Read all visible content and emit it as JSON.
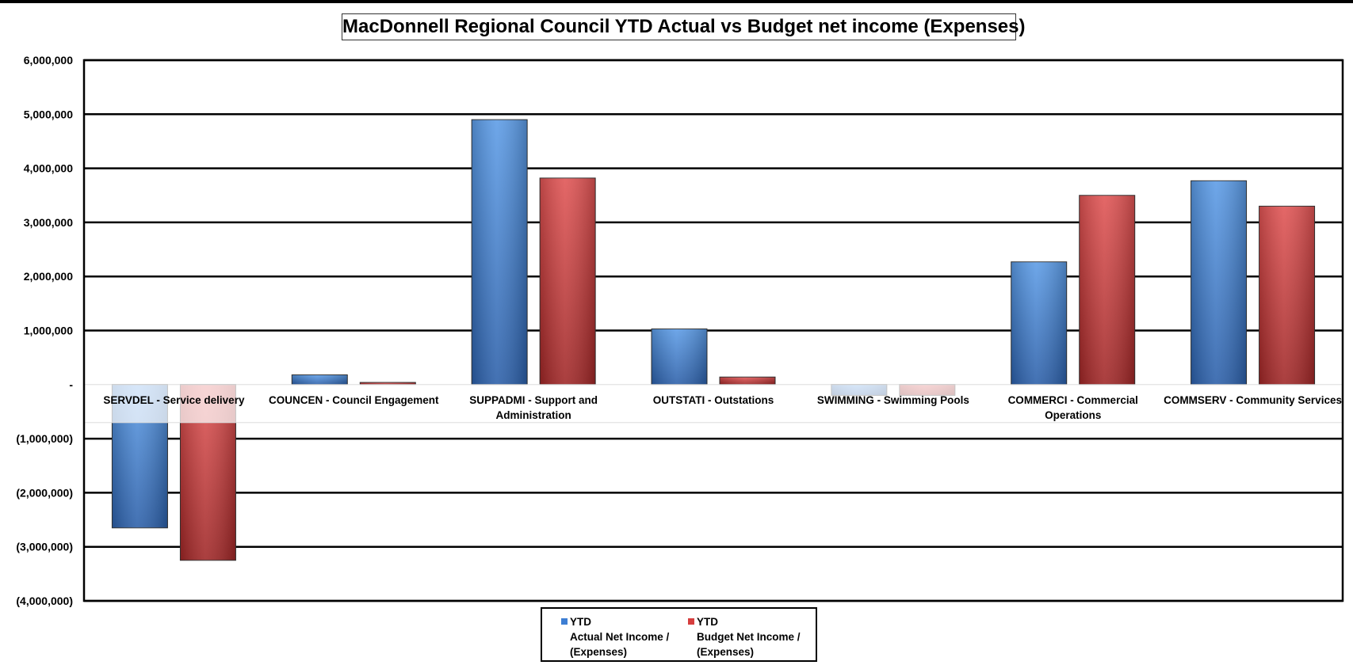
{
  "chart_data": {
    "type": "bar",
    "title": "MacDonnell Regional Council YTD Actual vs Budget net income (Expenses)",
    "categories": [
      "SERVDEL - Service delivery",
      "COUNCEN - Council Engagement",
      "SUPPADMI - Support and Administration",
      "OUTSTATI - Outstations",
      "SWIMMING - Swimming Pools",
      "COMMERCI - Commercial Operations",
      "COMMSERV - Community Services"
    ],
    "category_label_lines": [
      [
        "SERVDEL - Service delivery"
      ],
      [
        "COUNCEN - Council Engagement"
      ],
      [
        "SUPPADMI - Support and",
        "Administration"
      ],
      [
        "OUTSTATI - Outstations"
      ],
      [
        "SWIMMING - Swimming Pools"
      ],
      [
        "COMMERCI - Commercial",
        "Operations"
      ],
      [
        "COMMSERV - Community Services"
      ]
    ],
    "series": [
      {
        "name": "YTD Actual Net Income / (Expenses)",
        "color": "#3d7ed3",
        "values": [
          -2650000,
          180000,
          4900000,
          1030000,
          -200000,
          2270000,
          3770000
        ]
      },
      {
        "name": "YTD Budget Net Income / (Expenses)",
        "color": "#d63e3e",
        "values": [
          -3250000,
          40000,
          3820000,
          140000,
          -200000,
          3500000,
          3300000
        ]
      }
    ],
    "ylim": [
      -4000000,
      6000000
    ],
    "yticks": [
      6000000,
      5000000,
      4000000,
      3000000,
      2000000,
      1000000,
      0,
      -1000000,
      -2000000,
      -3000000,
      -4000000
    ],
    "ytick_labels": [
      "6,000,000",
      "5,000,000",
      "4,000,000",
      "3,000,000",
      "2,000,000",
      "1,000,000",
      "-",
      "(1,000,000)",
      "(2,000,000)",
      "(3,000,000)",
      "(4,000,000)"
    ],
    "xlabel": "",
    "ylabel": "",
    "grid": true,
    "legend_position": "bottom"
  },
  "legend": [
    {
      "head": "YTD",
      "body": "Actual Net Income /\n(Expenses)",
      "color": "#3d7ed3"
    },
    {
      "head": "YTD",
      "body": "Budget Net Income /\n(Expenses)",
      "color": "#d63e3e"
    }
  ]
}
